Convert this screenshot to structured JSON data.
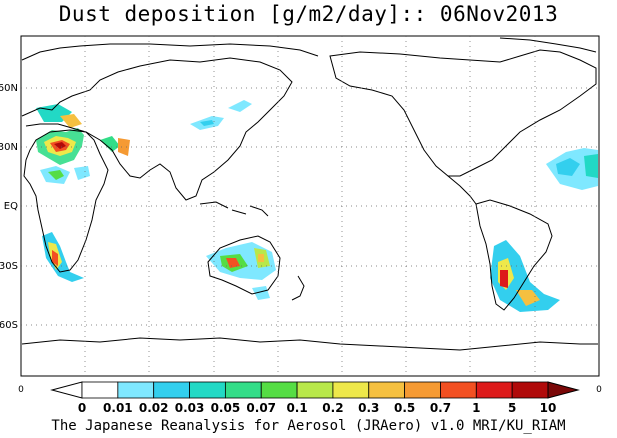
{
  "title": "Dust deposition [g/m2/day]:: 06Nov2013",
  "credit": "The Japanese Reanalysis for Aerosol (JRAero) v1.0 MRI/KU_RIAM",
  "map": {
    "type": "global-map",
    "variable": "Dust deposition",
    "units": "g/m2/day",
    "date": "06Nov2013",
    "lat_labels": [
      "60N",
      "30N",
      "EQ",
      "30S",
      "60S"
    ],
    "grid": true
  },
  "colorbar": {
    "edge_left": "0",
    "edge_right": "0",
    "levels": [
      "0",
      "0.01",
      "0.02",
      "0.03",
      "0.05",
      "0.07",
      "0.1",
      "0.2",
      "0.3",
      "0.5",
      "0.7",
      "1",
      "5",
      "10"
    ],
    "colors": [
      "#ffffff",
      "#ffffff",
      "#7fe8ff",
      "#33cfee",
      "#22d9c5",
      "#33dd88",
      "#55dd44",
      "#b8e84a",
      "#eee84a",
      "#f5c040",
      "#f59a33",
      "#f25022",
      "#dd1a1a",
      "#b00a0a",
      "#7a0808"
    ]
  }
}
